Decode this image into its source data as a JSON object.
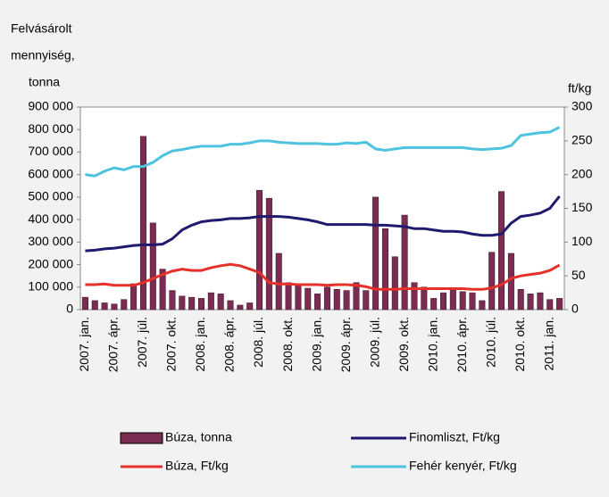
{
  "chart_data": {
    "type": "bar",
    "y_label_lines": [
      "Felvásárolt",
      "mennyiség,",
      "tonna"
    ],
    "y2_label": "ft/kg",
    "categories": [
      "2007. jan.",
      null,
      null,
      "2007. ápr.",
      null,
      null,
      "2007. júl.",
      null,
      null,
      "2007. okt.",
      null,
      null,
      "2008. jan.",
      null,
      null,
      "2008. ápr.",
      null,
      null,
      "2008. júl.",
      null,
      null,
      "2008. okt.",
      null,
      null,
      "2009. jan.",
      null,
      null,
      "2009. ápr.",
      null,
      null,
      "2009. júl.",
      null,
      null,
      "2009. okt.",
      null,
      null,
      "2010. jan.",
      null,
      null,
      "2010. ápr.",
      null,
      null,
      "2010. júl.",
      null,
      null,
      "2010. okt.",
      null,
      null,
      "2011. jan.",
      null
    ],
    "ylim": [
      0,
      900000
    ],
    "yticks": [
      0,
      {
        "value": 100000,
        "label": "100 000"
      },
      {
        "value": 200000,
        "label": "200 000"
      },
      {
        "value": 300000,
        "label": "300 000"
      },
      {
        "value": 400000,
        "label": "400 000"
      },
      {
        "value": 500000,
        "label": "500 000"
      },
      {
        "value": 600000,
        "label": "600 000"
      },
      {
        "value": 700000,
        "label": "700 000"
      },
      {
        "value": 800000,
        "label": "800 000"
      },
      {
        "value": 900000,
        "label": "900 000"
      }
    ],
    "y2lim": [
      0,
      300
    ],
    "y2ticks": [
      0,
      50,
      100,
      150,
      200,
      250,
      300
    ],
    "series": [
      {
        "name": "Búza, tonna",
        "type": "bar",
        "color": "#7b2c52",
        "values": [
          55000,
          40000,
          30000,
          25000,
          45000,
          115000,
          770000,
          385000,
          180000,
          85000,
          60000,
          55000,
          50000,
          75000,
          70000,
          40000,
          20000,
          30000,
          530000,
          495000,
          250000,
          120000,
          110000,
          95000,
          70000,
          100000,
          90000,
          85000,
          120000,
          85000,
          500000,
          360000,
          235000,
          420000,
          120000,
          100000,
          50000,
          75000,
          90000,
          80000,
          75000,
          40000,
          255000,
          525000,
          250000,
          90000,
          70000,
          75000,
          45000,
          50000
        ]
      },
      {
        "name": "Finomliszt, Ft/kg",
        "type": "line",
        "axis": "y2",
        "color": "#1f1a6e",
        "values": [
          87,
          88,
          90,
          91,
          93,
          95,
          96,
          96,
          97,
          105,
          118,
          125,
          130,
          132,
          133,
          135,
          135,
          136,
          138,
          138,
          138,
          137,
          135,
          133,
          130,
          126,
          126,
          126,
          126,
          126,
          125,
          125,
          124,
          123,
          120,
          120,
          118,
          116,
          116,
          115,
          112,
          110,
          110,
          112,
          128,
          138,
          140,
          143,
          150,
          168
        ]
      },
      {
        "name": "Búza, Ft/kg",
        "type": "line",
        "axis": "y2",
        "color": "#e8302a",
        "values": [
          37,
          37,
          38,
          36,
          36,
          36,
          40,
          46,
          52,
          57,
          60,
          58,
          58,
          62,
          65,
          67,
          65,
          60,
          55,
          40,
          38,
          38,
          37,
          37,
          37,
          36,
          37,
          37,
          36,
          34,
          30,
          30,
          30,
          31,
          31,
          31,
          31,
          31,
          31,
          31,
          30,
          30,
          32,
          37,
          46,
          50,
          52,
          54,
          58,
          66
        ]
      },
      {
        "name": "Fehér kenyér, Ft/kg",
        "type": "line",
        "axis": "y2",
        "color": "#4dc3e0",
        "values": [
          200,
          198,
          205,
          210,
          207,
          212,
          212,
          218,
          228,
          235,
          237,
          240,
          242,
          242,
          242,
          245,
          245,
          247,
          250,
          250,
          248,
          247,
          246,
          246,
          246,
          245,
          245,
          247,
          246,
          248,
          238,
          236,
          238,
          240,
          240,
          240,
          240,
          240,
          240,
          240,
          238,
          237,
          238,
          239,
          243,
          258,
          260,
          262,
          263,
          270
        ]
      }
    ]
  }
}
